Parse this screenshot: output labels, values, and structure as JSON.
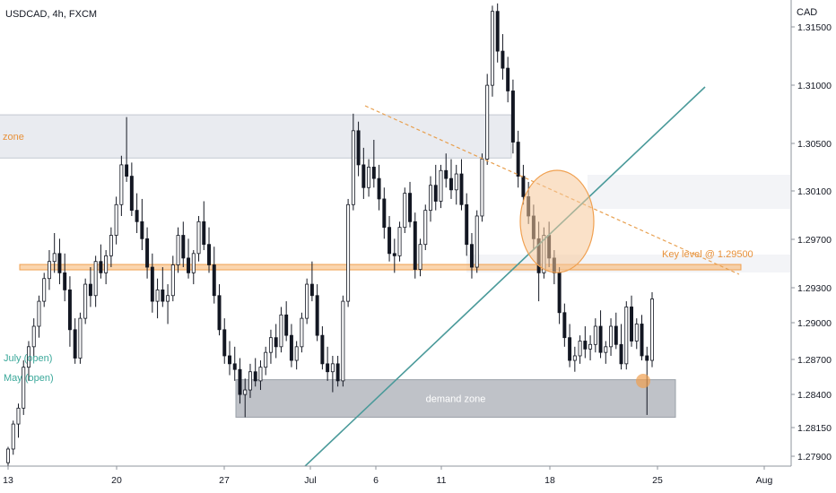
{
  "header": {
    "symbol_title": "USDCAD, 4h, FXCM",
    "currency": "CAD"
  },
  "chart_data": {
    "type": "candlestick",
    "y_axis": {
      "ticks": [
        "1.31500",
        "1.31000",
        "1.30500",
        "1.30100",
        "1.29700",
        "1.29300",
        "1.29000",
        "1.28700",
        "1.28400",
        "1.28150",
        "1.27900"
      ],
      "range": [
        1.2775,
        1.3185
      ]
    },
    "x_axis": {
      "ticks": [
        "13",
        "20",
        "27",
        "Jul",
        "6",
        "11",
        "18",
        "25",
        "Aug"
      ]
    },
    "zones": [
      {
        "label": "zone",
        "from": 1.3046,
        "to": 1.3084
      },
      {
        "label": "demand zone",
        "from": 1.2818,
        "to": 1.2851
      }
    ],
    "levels": [
      {
        "label": "Key level @ 1.29500",
        "value": 1.295
      }
    ],
    "other_labels": [
      "July (open)",
      "May (open)"
    ],
    "colors": {
      "up": "#ffffff",
      "down": "#131722",
      "wick": "#131722",
      "key_level": "#f5b26b",
      "trendline": "#4a9a9a",
      "zone_fill": "#dde0e8",
      "demand_fill": "#a9adb5",
      "circle_fill": "#f5c99a",
      "circle_stroke": "#f0a050",
      "open_label": "#3aa89a",
      "key_label": "#e8913a"
    },
    "candles": [
      [
        1.2778,
        1.2792,
        1.2772,
        1.279
      ],
      [
        1.279,
        1.2815,
        1.2785,
        1.2812
      ],
      [
        1.2812,
        1.283,
        1.28,
        1.2826
      ],
      [
        1.2826,
        1.2868,
        1.282,
        1.2862
      ],
      [
        1.2862,
        1.2885,
        1.285,
        1.288
      ],
      [
        1.288,
        1.2905,
        1.287,
        1.2898
      ],
      [
        1.2898,
        1.2925,
        1.2888,
        1.292
      ],
      [
        1.292,
        1.2945,
        1.2915,
        1.294
      ],
      [
        1.294,
        1.2965,
        1.293,
        1.2955
      ],
      [
        1.2955,
        1.298,
        1.2945,
        1.2962
      ],
      [
        1.2962,
        1.2975,
        1.2935,
        1.2945
      ],
      [
        1.2945,
        1.2962,
        1.292,
        1.293
      ],
      [
        1.293,
        1.2942,
        1.288,
        1.2895
      ],
      [
        1.2895,
        1.2905,
        1.2865,
        1.287
      ],
      [
        1.287,
        1.291,
        1.2865,
        1.2905
      ],
      [
        1.2905,
        1.294,
        1.29,
        1.2935
      ],
      [
        1.2935,
        1.295,
        1.2915,
        1.2925
      ],
      [
        1.2925,
        1.296,
        1.2915,
        1.2955
      ],
      [
        1.2955,
        1.297,
        1.294,
        1.2945
      ],
      [
        1.2945,
        1.2965,
        1.2935,
        1.296
      ],
      [
        1.296,
        1.2985,
        1.295,
        1.2978
      ],
      [
        1.2978,
        1.3012,
        1.297,
        1.3005
      ],
      [
        1.3005,
        1.3048,
        1.2995,
        1.304
      ],
      [
        1.304,
        1.3082,
        1.3025,
        1.303
      ],
      [
        1.303,
        1.3042,
        1.2995,
        1.3
      ],
      [
        1.3,
        1.3015,
        1.298,
        1.299
      ],
      [
        1.299,
        1.301,
        1.2965,
        1.2975
      ],
      [
        1.2975,
        1.2985,
        1.294,
        1.295
      ],
      [
        1.295,
        1.2962,
        1.291,
        1.292
      ],
      [
        1.292,
        1.294,
        1.2905,
        1.293
      ],
      [
        1.293,
        1.295,
        1.2915,
        1.292
      ],
      [
        1.292,
        1.2935,
        1.29,
        1.2925
      ],
      [
        1.2925,
        1.296,
        1.292,
        1.2952
      ],
      [
        1.2952,
        1.2985,
        1.2945,
        1.2978
      ],
      [
        1.2978,
        1.299,
        1.295,
        1.2958
      ],
      [
        1.2958,
        1.2975,
        1.294,
        1.2945
      ],
      [
        1.2945,
        1.2965,
        1.2935,
        1.2962
      ],
      [
        1.2962,
        1.2995,
        1.2955,
        1.299
      ],
      [
        1.299,
        1.3008,
        1.2965,
        1.297
      ],
      [
        1.297,
        1.2985,
        1.2945,
        1.2952
      ],
      [
        1.2952,
        1.2968,
        1.2918,
        1.2925
      ],
      [
        1.2925,
        1.2935,
        1.289,
        1.2895
      ],
      [
        1.2895,
        1.2905,
        1.2865,
        1.2872
      ],
      [
        1.2872,
        1.2885,
        1.2855,
        1.2865
      ],
      [
        1.2865,
        1.288,
        1.285,
        1.286
      ],
      [
        1.286,
        1.287,
        1.283,
        1.2838
      ],
      [
        1.2838,
        1.2852,
        1.2818,
        1.2842
      ],
      [
        1.2842,
        1.2865,
        1.2835,
        1.2858
      ],
      [
        1.2858,
        1.287,
        1.2845,
        1.285
      ],
      [
        1.285,
        1.2868,
        1.2842,
        1.2862
      ],
      [
        1.2862,
        1.288,
        1.2855,
        1.2875
      ],
      [
        1.2875,
        1.2895,
        1.2865,
        1.2888
      ],
      [
        1.2888,
        1.29,
        1.287,
        1.288
      ],
      [
        1.288,
        1.2915,
        1.2875,
        1.2908
      ],
      [
        1.2908,
        1.292,
        1.2885,
        1.289
      ],
      [
        1.289,
        1.29,
        1.2862,
        1.2868
      ],
      [
        1.2868,
        1.2885,
        1.286,
        1.288
      ],
      [
        1.288,
        1.291,
        1.2875,
        1.2905
      ],
      [
        1.2905,
        1.294,
        1.29,
        1.2935
      ],
      [
        1.2935,
        1.2955,
        1.292,
        1.2925
      ],
      [
        1.2925,
        1.2935,
        1.2885,
        1.289
      ],
      [
        1.289,
        1.2898,
        1.286,
        1.2865
      ],
      [
        1.2865,
        1.288,
        1.285,
        1.2858
      ],
      [
        1.2858,
        1.2872,
        1.284,
        1.2865
      ],
      [
        1.2865,
        1.2872,
        1.2845,
        1.285
      ],
      [
        1.285,
        1.2925,
        1.2845,
        1.292
      ],
      [
        1.292,
        1.301,
        1.2915,
        1.3005
      ],
      [
        1.3005,
        1.3085,
        1.3,
        1.307
      ],
      [
        1.307,
        1.3078,
        1.303,
        1.304
      ],
      [
        1.304,
        1.3055,
        1.301,
        1.302
      ],
      [
        1.302,
        1.3045,
        1.3012,
        1.3038
      ],
      [
        1.3038,
        1.3062,
        1.302,
        1.3028
      ],
      [
        1.3028,
        1.304,
        1.3,
        1.301
      ],
      [
        1.301,
        1.302,
        1.2975,
        1.2985
      ],
      [
        1.2985,
        1.2995,
        1.2955,
        1.2962
      ],
      [
        1.2962,
        1.2975,
        1.2945,
        1.296
      ],
      [
        1.296,
        1.299,
        1.2955,
        1.2985
      ],
      [
        1.2985,
        1.302,
        1.298,
        1.3015
      ],
      [
        1.3015,
        1.3025,
        1.2985,
        1.299
      ],
      [
        1.299,
        1.2998,
        1.294,
        1.2948
      ],
      [
        1.2948,
        1.2975,
        1.2942,
        1.297
      ],
      [
        1.297,
        1.3005,
        1.2965,
        1.3
      ],
      [
        1.3,
        1.303,
        1.299,
        1.3022
      ],
      [
        1.3022,
        1.304,
        1.3,
        1.3008
      ],
      [
        1.3008,
        1.304,
        1.3002,
        1.3035
      ],
      [
        1.3035,
        1.305,
        1.302,
        1.3028
      ],
      [
        1.3028,
        1.3045,
        1.301,
        1.3018
      ],
      [
        1.3018,
        1.304,
        1.3005,
        1.3032
      ],
      [
        1.3032,
        1.3045,
        1.3,
        1.3005
      ],
      [
        1.3005,
        1.3015,
        1.296,
        1.297
      ],
      [
        1.297,
        1.298,
        1.294,
        1.295
      ],
      [
        1.295,
        1.3,
        1.2945,
        1.2995
      ],
      [
        1.2995,
        1.305,
        1.299,
        1.3045
      ],
      [
        1.3045,
        1.312,
        1.304,
        1.311
      ],
      [
        1.311,
        1.318,
        1.31,
        1.3175
      ],
      [
        1.3175,
        1.3182,
        1.313,
        1.314
      ],
      [
        1.314,
        1.3155,
        1.3115,
        1.3125
      ],
      [
        1.3125,
        1.3135,
        1.3095,
        1.3105
      ],
      [
        1.3105,
        1.3115,
        1.305,
        1.306
      ],
      [
        1.306,
        1.307,
        1.302,
        1.303
      ],
      [
        1.303,
        1.304,
        1.3005,
        1.3012
      ],
      [
        1.3012,
        1.3025,
        1.2988,
        1.2995
      ],
      [
        1.2995,
        1.3005,
        1.2965,
        1.2975
      ],
      [
        1.2975,
        1.299,
        1.292,
        1.2945
      ],
      [
        1.2945,
        1.2985,
        1.294,
        1.2978
      ],
      [
        1.2978,
        1.299,
        1.295,
        1.2958
      ],
      [
        1.2958,
        1.2965,
        1.2935,
        1.2945
      ],
      [
        1.2945,
        1.295,
        1.29,
        1.291
      ],
      [
        1.291,
        1.2918,
        1.288,
        1.2888
      ],
      [
        1.2888,
        1.29,
        1.2862,
        1.2868
      ],
      [
        1.2868,
        1.288,
        1.2858,
        1.2872
      ],
      [
        1.2872,
        1.289,
        1.2865,
        1.2885
      ],
      [
        1.2885,
        1.2898,
        1.287,
        1.2878
      ],
      [
        1.2878,
        1.289,
        1.2868,
        1.2882
      ],
      [
        1.2882,
        1.2905,
        1.2875,
        1.2898
      ],
      [
        1.2898,
        1.2912,
        1.287,
        1.2875
      ],
      [
        1.2875,
        1.2885,
        1.2865,
        1.288
      ],
      [
        1.288,
        1.2905,
        1.2872,
        1.2898
      ],
      [
        1.2898,
        1.291,
        1.2878,
        1.2882
      ],
      [
        1.2882,
        1.29,
        1.286,
        1.2865
      ],
      [
        1.2865,
        1.292,
        1.286,
        1.2915
      ],
      [
        1.2915,
        1.2925,
        1.288,
        1.2885
      ],
      [
        1.2885,
        1.2905,
        1.2878,
        1.29
      ],
      [
        1.29,
        1.2908,
        1.2868,
        1.2872
      ],
      [
        1.2872,
        1.288,
        1.282,
        1.2868
      ],
      [
        1.2868,
        1.2928,
        1.2862,
        1.2922
      ]
    ]
  }
}
